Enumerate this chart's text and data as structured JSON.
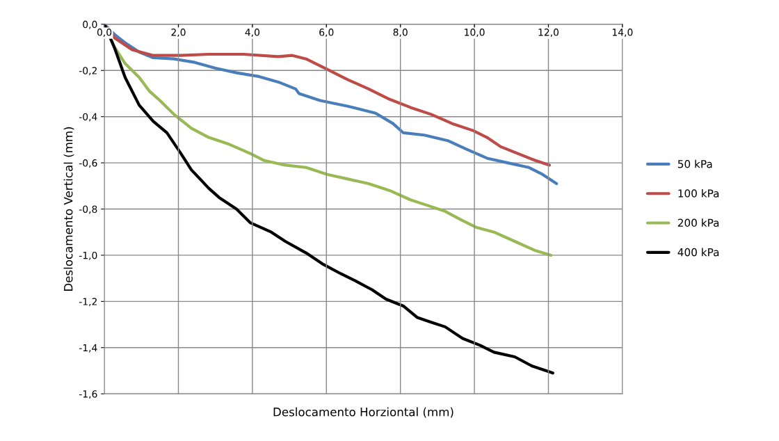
{
  "chart_data": {
    "type": "line",
    "xlabel": "Deslocamento Horziontal (mm)",
    "ylabel": "Deslocamento Vertical (mm)",
    "xlim": [
      0,
      14
    ],
    "ylim": [
      -1.6,
      0
    ],
    "xticks": [
      {
        "value": 0,
        "label": "0,0"
      },
      {
        "value": 2,
        "label": "2,0"
      },
      {
        "value": 4,
        "label": "4,0"
      },
      {
        "value": 6,
        "label": "6,0"
      },
      {
        "value": 8,
        "label": "8,0"
      },
      {
        "value": 10,
        "label": "10,0"
      },
      {
        "value": 12,
        "label": "12,0"
      },
      {
        "value": 14,
        "label": "14,0"
      }
    ],
    "yticks": [
      {
        "value": 0,
        "label": "0,0"
      },
      {
        "value": -0.2,
        "label": "-0,2"
      },
      {
        "value": -0.4,
        "label": "-0,4"
      },
      {
        "value": -0.6,
        "label": "-0,6"
      },
      {
        "value": -0.8,
        "label": "-0,8"
      },
      {
        "value": -1.0,
        "label": "-1,0"
      },
      {
        "value": -1.2,
        "label": "-1,2"
      },
      {
        "value": -1.4,
        "label": "-1,4"
      },
      {
        "value": -1.6,
        "label": "-1,6"
      }
    ],
    "grid": true,
    "legend": "right",
    "marker": "none",
    "line_style": "solid",
    "series": [
      {
        "name": "50 kPa",
        "color": "#4a7ebb",
        "x": [
          0,
          0.28,
          0.56,
          0.94,
          1.32,
          1.88,
          2.44,
          3.0,
          3.57,
          4.14,
          4.7,
          5.17,
          5.26,
          5.83,
          6.58,
          7.33,
          7.8,
          8.08,
          8.65,
          9.3,
          9.77,
          10.34,
          10.9,
          11.47,
          11.84,
          12.22
        ],
        "values": [
          0,
          -0.045,
          -0.08,
          -0.12,
          -0.145,
          -0.15,
          -0.165,
          -0.19,
          -0.21,
          -0.225,
          -0.25,
          -0.28,
          -0.3,
          -0.33,
          -0.355,
          -0.385,
          -0.43,
          -0.47,
          -0.48,
          -0.505,
          -0.54,
          -0.58,
          -0.6,
          -0.62,
          -0.65,
          -0.69
        ]
      },
      {
        "name": "100 kPa",
        "color": "#be4b48",
        "x": [
          0,
          0.28,
          0.75,
          1.32,
          2.07,
          2.82,
          3.76,
          4.7,
          5.08,
          5.45,
          6.02,
          6.58,
          7.14,
          7.71,
          8.27,
          8.83,
          9.4,
          9.96,
          10.34,
          10.71,
          11.18,
          11.65,
          12.03
        ],
        "values": [
          0,
          -0.06,
          -0.11,
          -0.135,
          -0.135,
          -0.13,
          -0.13,
          -0.14,
          -0.135,
          -0.15,
          -0.195,
          -0.24,
          -0.28,
          -0.325,
          -0.36,
          -0.39,
          -0.43,
          -0.46,
          -0.49,
          -0.53,
          -0.56,
          -0.59,
          -0.61
        ]
      },
      {
        "name": "200 kPa",
        "color": "#98b954",
        "x": [
          0,
          0.28,
          0.56,
          0.94,
          1.22,
          1.5,
          1.88,
          2.35,
          2.82,
          3.38,
          3.95,
          4.32,
          4.89,
          5.45,
          6.02,
          6.58,
          7.14,
          7.71,
          8.27,
          8.65,
          9.21,
          9.68,
          10.06,
          10.53,
          11.09,
          11.65,
          12.07
        ],
        "values": [
          0,
          -0.1,
          -0.17,
          -0.23,
          -0.29,
          -0.33,
          -0.39,
          -0.45,
          -0.49,
          -0.52,
          -0.56,
          -0.59,
          -0.61,
          -0.62,
          -0.65,
          -0.67,
          -0.69,
          -0.72,
          -0.76,
          -0.78,
          -0.81,
          -0.85,
          -0.88,
          -0.9,
          -0.94,
          -0.98,
          -1.0
        ]
      },
      {
        "name": "400 kPa",
        "color": "#000000",
        "x": [
          0,
          0.28,
          0.56,
          0.94,
          1.32,
          1.69,
          2.07,
          2.35,
          2.82,
          3.1,
          3.57,
          3.95,
          4.51,
          4.89,
          5.45,
          5.92,
          6.39,
          6.77,
          7.24,
          7.61,
          8.08,
          8.46,
          8.83,
          9.21,
          9.68,
          10.15,
          10.53,
          11.09,
          11.56,
          11.94,
          12.12
        ],
        "values": [
          0,
          -0.105,
          -0.23,
          -0.35,
          -0.42,
          -0.47,
          -0.56,
          -0.63,
          -0.71,
          -0.75,
          -0.8,
          -0.86,
          -0.9,
          -0.94,
          -0.99,
          -1.04,
          -1.08,
          -1.11,
          -1.15,
          -1.19,
          -1.22,
          -1.27,
          -1.29,
          -1.31,
          -1.36,
          -1.39,
          -1.42,
          -1.44,
          -1.48,
          -1.5,
          -1.51
        ]
      }
    ]
  }
}
